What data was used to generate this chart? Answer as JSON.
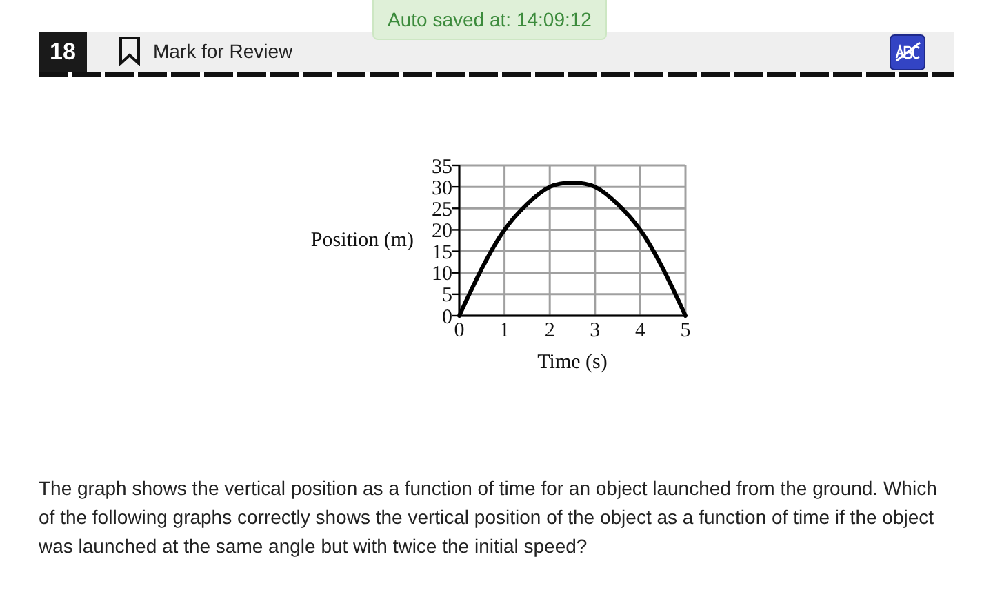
{
  "chart_data": {
    "type": "line",
    "annotations": [
      "Auto saved at: 14:09:12",
      "18",
      "Mark for Review",
      "The graph shows the vertical position as a function of time for an object launched from the ground. Which of the following graphs correctly shows the vertical position of the object as a function of time if the object was launched at the same angle but with twice the initial speed?"
    ],
    "xlabel": "Time (s)",
    "ylabel": "Position (m)",
    "x": [
      0,
      0.5,
      1,
      1.5,
      2,
      2.5,
      3,
      3.5,
      4,
      4.5,
      5
    ],
    "series": [
      {
        "color": "#000000",
        "values": [
          0,
          11,
          20,
          26,
          30,
          31,
          30,
          26,
          20,
          11,
          0
        ]
      }
    ],
    "xlim": [
      0,
      5
    ],
    "ylim": [
      0,
      35
    ],
    "xticks": [
      0,
      1,
      2,
      3,
      4,
      5
    ],
    "yticks": [
      0,
      5,
      10,
      15,
      20,
      25,
      30,
      35
    ],
    "grid": true
  }
}
